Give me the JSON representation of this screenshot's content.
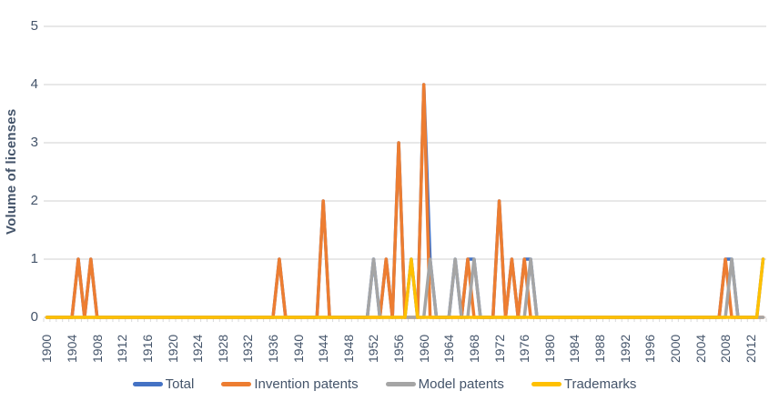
{
  "chart_data": {
    "type": "line",
    "title": "",
    "ylabel": "Volume of licenses",
    "ylim": [
      0,
      5
    ],
    "yticks": [
      "0",
      "1",
      "2",
      "3",
      "4",
      "5"
    ],
    "x_start": 1900,
    "x_end": 2014,
    "xtick_labels": [
      "1900",
      "1904",
      "1908",
      "1912",
      "1916",
      "1920",
      "1924",
      "1928",
      "1932",
      "1936",
      "1940",
      "1944",
      "1948",
      "1952",
      "1956",
      "1960",
      "1964",
      "1968",
      "1972",
      "1976",
      "1980",
      "1984",
      "1988",
      "1992",
      "1996",
      "2000",
      "2004",
      "2008",
      "2012"
    ],
    "grid": true,
    "legend_position": "bottom",
    "colors": {
      "gridline": "#D9D9D9",
      "axis_text": "#44546A",
      "tick_mark": "#D9D9D9"
    },
    "series": [
      {
        "name": "Total",
        "color": "#4472C4",
        "points": {
          "1905": 1,
          "1907": 1,
          "1937": 1,
          "1944": 2,
          "1952": 1,
          "1954": 1,
          "1956": 3,
          "1958": 1,
          "1960": 4,
          "1961": 1,
          "1965": 1,
          "1967": 1,
          "1968": 1,
          "1972": 2,
          "1974": 1,
          "1976": 1,
          "1977": 1,
          "2008": 1,
          "2009": 1,
          "2014": 1
        }
      },
      {
        "name": "Invention patents",
        "color": "#ED7D31",
        "points": {
          "1905": 1,
          "1907": 1,
          "1937": 1,
          "1944": 2,
          "1954": 1,
          "1956": 3,
          "1960": 4,
          "1967": 1,
          "1972": 2,
          "1974": 1,
          "1976": 1,
          "2008": 1
        }
      },
      {
        "name": "Model patents",
        "color": "#A5A5A5",
        "points": {
          "1952": 1,
          "1961": 1,
          "1965": 1,
          "1968": 1,
          "1977": 1,
          "2009": 1
        }
      },
      {
        "name": "Trademarks",
        "color": "#FFC000",
        "points": {
          "1958": 1,
          "2014": 1
        }
      }
    ]
  }
}
